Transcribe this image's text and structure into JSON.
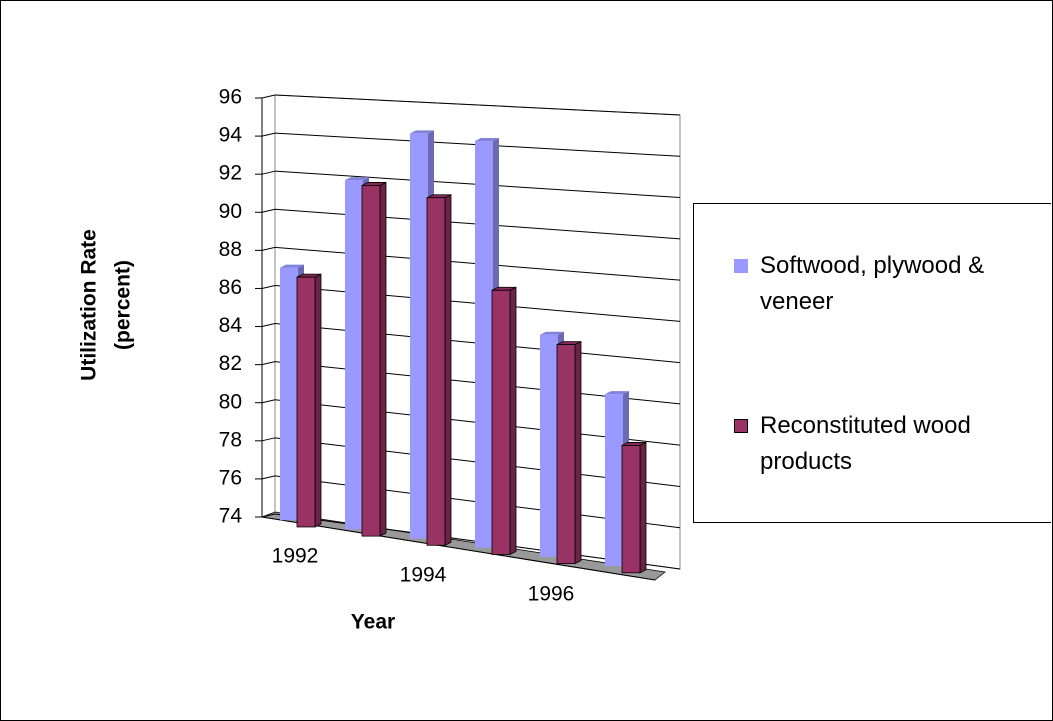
{
  "chart_data": {
    "type": "bar3d",
    "ylabel": [
      "Utilization Rate",
      "(percent)"
    ],
    "xlabel": "Year",
    "categories": [
      "1992",
      null,
      "1994",
      null,
      "1996",
      null
    ],
    "series": [
      {
        "name": "Softwood, plywood & veneer",
        "color": "#9999ff",
        "values": [
          87.2,
          92,
          94.6,
          94.4,
          85,
          82.4
        ]
      },
      {
        "name": "Reconstituted wood products",
        "color": "#993366",
        "values": [
          87,
          92,
          91.6,
          87.2,
          84.8,
          80.2
        ]
      }
    ],
    "ylim": [
      74,
      96
    ],
    "yticks": [
      74,
      76,
      78,
      80,
      82,
      84,
      86,
      88,
      90,
      92,
      94,
      96
    ],
    "grid": true,
    "legend": "right"
  }
}
